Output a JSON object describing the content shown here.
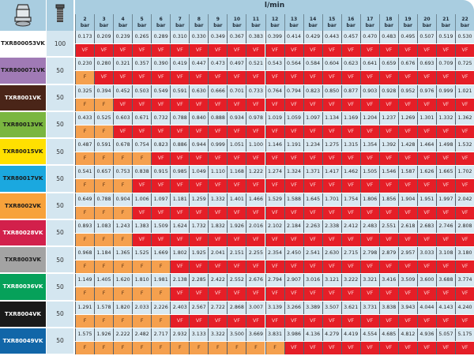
{
  "header": {
    "flow_unit": "l/min",
    "pressure_unit": "bar",
    "pressures": [
      2,
      3,
      4,
      5,
      6,
      7,
      8,
      9,
      10,
      11,
      12,
      13,
      14,
      15,
      16,
      17,
      18,
      19,
      20,
      21,
      22
    ],
    "nozzle_icon": "nozzle-icon",
    "filter_icon": "filter-mesh-icon"
  },
  "colors": {
    "header": "#a9cde0",
    "value_cell": "#d9e9f2",
    "VF": "#e51e27",
    "F": "#f5a04e"
  },
  "rows": [
    {
      "name": "TXR800053VK",
      "mesh": "100",
      "color": "#ffffff",
      "text": "#1a1a1a",
      "flow": [
        "0.173",
        "0.209",
        "0.239",
        "0.265",
        "0.289",
        "0.310",
        "0.330",
        "0.349",
        "0.367",
        "0.383",
        "0.399",
        "0.414",
        "0.429",
        "0.443",
        "0.457",
        "0.470",
        "0.483",
        "0.495",
        "0.507",
        "0.519",
        "0.530"
      ],
      "class": [
        "VF",
        "VF",
        "VF",
        "VF",
        "VF",
        "VF",
        "VF",
        "VF",
        "VF",
        "VF",
        "VF",
        "VF",
        "VF",
        "VF",
        "VF",
        "VF",
        "VF",
        "VF",
        "VF",
        "VF",
        "VF"
      ]
    },
    {
      "name": "TXR800071VK",
      "mesh": "50",
      "color": "#a07ab5",
      "text": "#1a1a1a",
      "flow": [
        "0.230",
        "0.280",
        "0.321",
        "0.357",
        "0.390",
        "0.419",
        "0.447",
        "0.473",
        "0.497",
        "0.521",
        "0.543",
        "0.564",
        "0.584",
        "0.604",
        "0.623",
        "0.641",
        "0.659",
        "0.676",
        "0.693",
        "0.709",
        "0.725"
      ],
      "class": [
        "F",
        "VF",
        "VF",
        "VF",
        "VF",
        "VF",
        "VF",
        "VF",
        "VF",
        "VF",
        "VF",
        "VF",
        "VF",
        "VF",
        "VF",
        "VF",
        "VF",
        "VF",
        "VF",
        "VF",
        "VF"
      ]
    },
    {
      "name": "TXR8001VK",
      "mesh": "50",
      "color": "#4a2518",
      "text": "#ffffff",
      "flow": [
        "0.325",
        "0.394",
        "0.452",
        "0.503",
        "0.549",
        "0.591",
        "0.630",
        "0.666",
        "0.701",
        "0.733",
        "0.764",
        "0.794",
        "0.823",
        "0.850",
        "0.877",
        "0.903",
        "0.928",
        "0.952",
        "0.976",
        "0.999",
        "1.021"
      ],
      "class": [
        "F",
        "F",
        "VF",
        "VF",
        "VF",
        "VF",
        "VF",
        "VF",
        "VF",
        "VF",
        "VF",
        "VF",
        "VF",
        "VF",
        "VF",
        "VF",
        "VF",
        "VF",
        "VF",
        "VF",
        "VF"
      ]
    },
    {
      "name": "TXR80013VK",
      "mesh": "50",
      "color": "#7ab640",
      "text": "#1a1a1a",
      "flow": [
        "0.433",
        "0.525",
        "0.603",
        "0.671",
        "0.732",
        "0.788",
        "0.840",
        "0.888",
        "0.934",
        "0.978",
        "1.019",
        "1.059",
        "1.097",
        "1.134",
        "1.169",
        "1.204",
        "1.237",
        "1.269",
        "1.301",
        "1.332",
        "1.362"
      ],
      "class": [
        "F",
        "F",
        "VF",
        "VF",
        "VF",
        "VF",
        "VF",
        "VF",
        "VF",
        "VF",
        "VF",
        "VF",
        "VF",
        "VF",
        "VF",
        "VF",
        "VF",
        "VF",
        "VF",
        "VF",
        "VF"
      ]
    },
    {
      "name": "TXR80015VK",
      "mesh": "50",
      "color": "#ffe000",
      "text": "#1a1a1a",
      "flow": [
        "0.487",
        "0.591",
        "0.678",
        "0.754",
        "0.823",
        "0.886",
        "0.944",
        "0.999",
        "1.051",
        "1.100",
        "1.146",
        "1.191",
        "1.234",
        "1.275",
        "1.315",
        "1.354",
        "1.392",
        "1.428",
        "1.464",
        "1.498",
        "1.532"
      ],
      "class": [
        "F",
        "F",
        "F",
        "F",
        "VF",
        "VF",
        "VF",
        "VF",
        "VF",
        "VF",
        "VF",
        "VF",
        "VF",
        "VF",
        "VF",
        "VF",
        "VF",
        "VF",
        "VF",
        "VF",
        "VF"
      ]
    },
    {
      "name": "TXR80017VK",
      "mesh": "50",
      "color": "#1ba8df",
      "text": "#1a1a1a",
      "flow": [
        "0.541",
        "0.657",
        "0.753",
        "0.838",
        "0.915",
        "0.985",
        "1.049",
        "1.110",
        "1.168",
        "1.222",
        "1.274",
        "1.324",
        "1.371",
        "1.417",
        "1.462",
        "1.505",
        "1.546",
        "1.587",
        "1.626",
        "1.665",
        "1.702"
      ],
      "class": [
        "F",
        "F",
        "F",
        "VF",
        "VF",
        "VF",
        "VF",
        "VF",
        "VF",
        "VF",
        "VF",
        "VF",
        "VF",
        "VF",
        "VF",
        "VF",
        "VF",
        "VF",
        "VF",
        "VF",
        "VF"
      ]
    },
    {
      "name": "TXR8002VK",
      "mesh": "50",
      "color": "#f7a23b",
      "text": "#1a1a1a",
      "flow": [
        "0.649",
        "0.788",
        "0.904",
        "1.006",
        "1.097",
        "1.181",
        "1.259",
        "1.332",
        "1.401",
        "1.466",
        "1.529",
        "1.588",
        "1.645",
        "1.701",
        "1.754",
        "1.806",
        "1.856",
        "1.904",
        "1.951",
        "1.997",
        "2.042"
      ],
      "class": [
        "F",
        "F",
        "F",
        "VF",
        "VF",
        "VF",
        "VF",
        "VF",
        "VF",
        "VF",
        "VF",
        "VF",
        "VF",
        "VF",
        "VF",
        "VF",
        "VF",
        "VF",
        "VF",
        "VF",
        "VF"
      ]
    },
    {
      "name": "TXR80028VK",
      "mesh": "50",
      "color": "#d2204b",
      "text": "#ffffff",
      "flow": [
        "0.893",
        "1.083",
        "1.243",
        "1.383",
        "1.509",
        "1.624",
        "1.732",
        "1.832",
        "1.926",
        "2.016",
        "2.102",
        "2.184",
        "2.263",
        "2.338",
        "2.412",
        "2.483",
        "2.551",
        "2.618",
        "2.683",
        "2.746",
        "2.808"
      ],
      "class": [
        "F",
        "F",
        "F",
        "VF",
        "VF",
        "VF",
        "VF",
        "VF",
        "VF",
        "VF",
        "VF",
        "VF",
        "VF",
        "VF",
        "VF",
        "VF",
        "VF",
        "VF",
        "VF",
        "VF",
        "VF"
      ]
    },
    {
      "name": "TXR8003VK",
      "mesh": "50",
      "color": "#a3a3a3",
      "text": "#1a1a1a",
      "flow": [
        "0.968",
        "1.184",
        "1.365",
        "1.525",
        "1.669",
        "1.802",
        "1.925",
        "2.041",
        "2.151",
        "2.255",
        "2.354",
        "2.450",
        "2.541",
        "2.630",
        "2.715",
        "2.798",
        "2.879",
        "2.957",
        "3.033",
        "3.108",
        "3.180"
      ],
      "class": [
        "F",
        "F",
        "F",
        "F",
        "F",
        "VF",
        "VF",
        "VF",
        "VF",
        "VF",
        "VF",
        "VF",
        "VF",
        "VF",
        "VF",
        "VF",
        "VF",
        "VF",
        "VF",
        "VF",
        "VF"
      ]
    },
    {
      "name": "TXR80036VK",
      "mesh": "50",
      "color": "#06a15a",
      "text": "#ffffff",
      "flow": [
        "1.149",
        "1.405",
        "1.620",
        "1.810",
        "1.981",
        "2.138",
        "2.285",
        "2.422",
        "2.552",
        "2.676",
        "2.794",
        "2.907",
        "3.016",
        "3.121",
        "3.222",
        "3.321",
        "3.416",
        "3.509",
        "3.600",
        "3.688",
        "3.774"
      ],
      "class": [
        "F",
        "F",
        "F",
        "F",
        "F",
        "VF",
        "VF",
        "VF",
        "VF",
        "VF",
        "VF",
        "VF",
        "VF",
        "VF",
        "VF",
        "VF",
        "VF",
        "VF",
        "VF",
        "VF",
        "VF"
      ]
    },
    {
      "name": "TXR8004VK",
      "mesh": "50",
      "color": "#1a1a1a",
      "text": "#ffffff",
      "flow": [
        "1.291",
        "1.578",
        "1.820",
        "2.033",
        "2.226",
        "2.403",
        "2.567",
        "2.722",
        "2.868",
        "3.007",
        "3.139",
        "3.266",
        "3.389",
        "3.507",
        "3.621",
        "3.731",
        "3.838",
        "3.943",
        "4.044",
        "4.143",
        "4.240"
      ],
      "class": [
        "F",
        "F",
        "F",
        "F",
        "F",
        "VF",
        "VF",
        "VF",
        "VF",
        "VF",
        "VF",
        "VF",
        "VF",
        "VF",
        "VF",
        "VF",
        "VF",
        "VF",
        "VF",
        "VF",
        "VF"
      ]
    },
    {
      "name": "TXR80049VK",
      "mesh": "50",
      "color": "#1166a8",
      "text": "#ffffff",
      "flow": [
        "1.575",
        "1.926",
        "2.222",
        "2.482",
        "2.717",
        "2.932",
        "3.133",
        "3.322",
        "3.500",
        "3.669",
        "3.831",
        "3.986",
        "4.136",
        "4.279",
        "4.419",
        "4.554",
        "4.685",
        "4.812",
        "4.936",
        "5.057",
        "5.175"
      ],
      "class": [
        "F",
        "F",
        "F",
        "F",
        "F",
        "F",
        "F",
        "F",
        "F",
        "F",
        "F",
        "VF",
        "VF",
        "VF",
        "VF",
        "VF",
        "VF",
        "VF",
        "VF",
        "VF",
        "VF"
      ]
    }
  ]
}
